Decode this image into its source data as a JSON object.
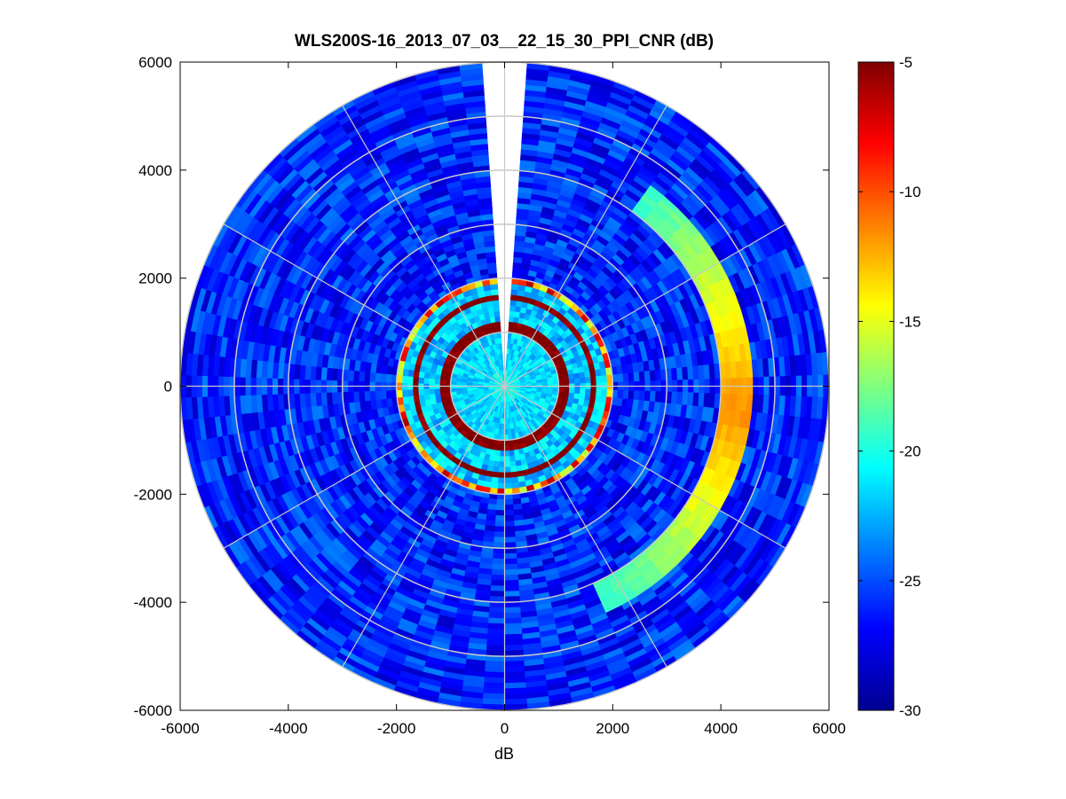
{
  "chart_data": {
    "type": "heatmap",
    "subtype": "polar-ppi",
    "title": "WLS200S-16_2013_07_03__22_15_30_PPI_CNR (dB)",
    "xlabel": "dB",
    "ylabel": "",
    "xlim": [
      -6000,
      6000
    ],
    "ylim": [
      -6000,
      6000
    ],
    "x_ticks": [
      -6000,
      -4000,
      -2000,
      0,
      2000,
      4000,
      6000
    ],
    "y_ticks": [
      -6000,
      -4000,
      -2000,
      0,
      2000,
      4000,
      6000
    ],
    "x_tick_labels": [
      "-6000",
      "-4000",
      "-2000",
      "0",
      "2000",
      "4000",
      "6000"
    ],
    "y_tick_labels": [
      "-6000",
      "-4000",
      "-2000",
      "0",
      "2000",
      "4000",
      "6000"
    ],
    "colorbar": {
      "colormap": "jet",
      "range": [
        -30,
        -5
      ],
      "ticks": [
        -5,
        -10,
        -15,
        -20,
        -25,
        -30
      ],
      "tick_labels": [
        "-5",
        "-10",
        "-15",
        "-20",
        "-25",
        "-30"
      ]
    },
    "max_range_m": 6000,
    "range_rings_m": [
      1000,
      2000,
      3000,
      4000,
      5000,
      6000
    ],
    "azimuth_spokes_deg": [
      0,
      30,
      60,
      90,
      120,
      150,
      180,
      210,
      240,
      270,
      300,
      330
    ],
    "no_data_sector_deg": [
      -4,
      4
    ],
    "background_cnr_db": -26,
    "features": [
      {
        "name": "near-field ring",
        "range_m": [
          300,
          1000
        ],
        "cnr_db": -22
      },
      {
        "name": "inner high-CNR ring",
        "range_m": [
          1000,
          2000
        ],
        "cnr_db": -6
      },
      {
        "name": "eastern arc",
        "range_m": [
          4000,
          4600
        ],
        "azimuth_deg": [
          35,
          155
        ],
        "cnr_db_peak": -11
      }
    ],
    "grid": true,
    "colors": {
      "grid": "#c8c8c8",
      "no_data": "#ffffff",
      "axes": "#000000"
    }
  }
}
